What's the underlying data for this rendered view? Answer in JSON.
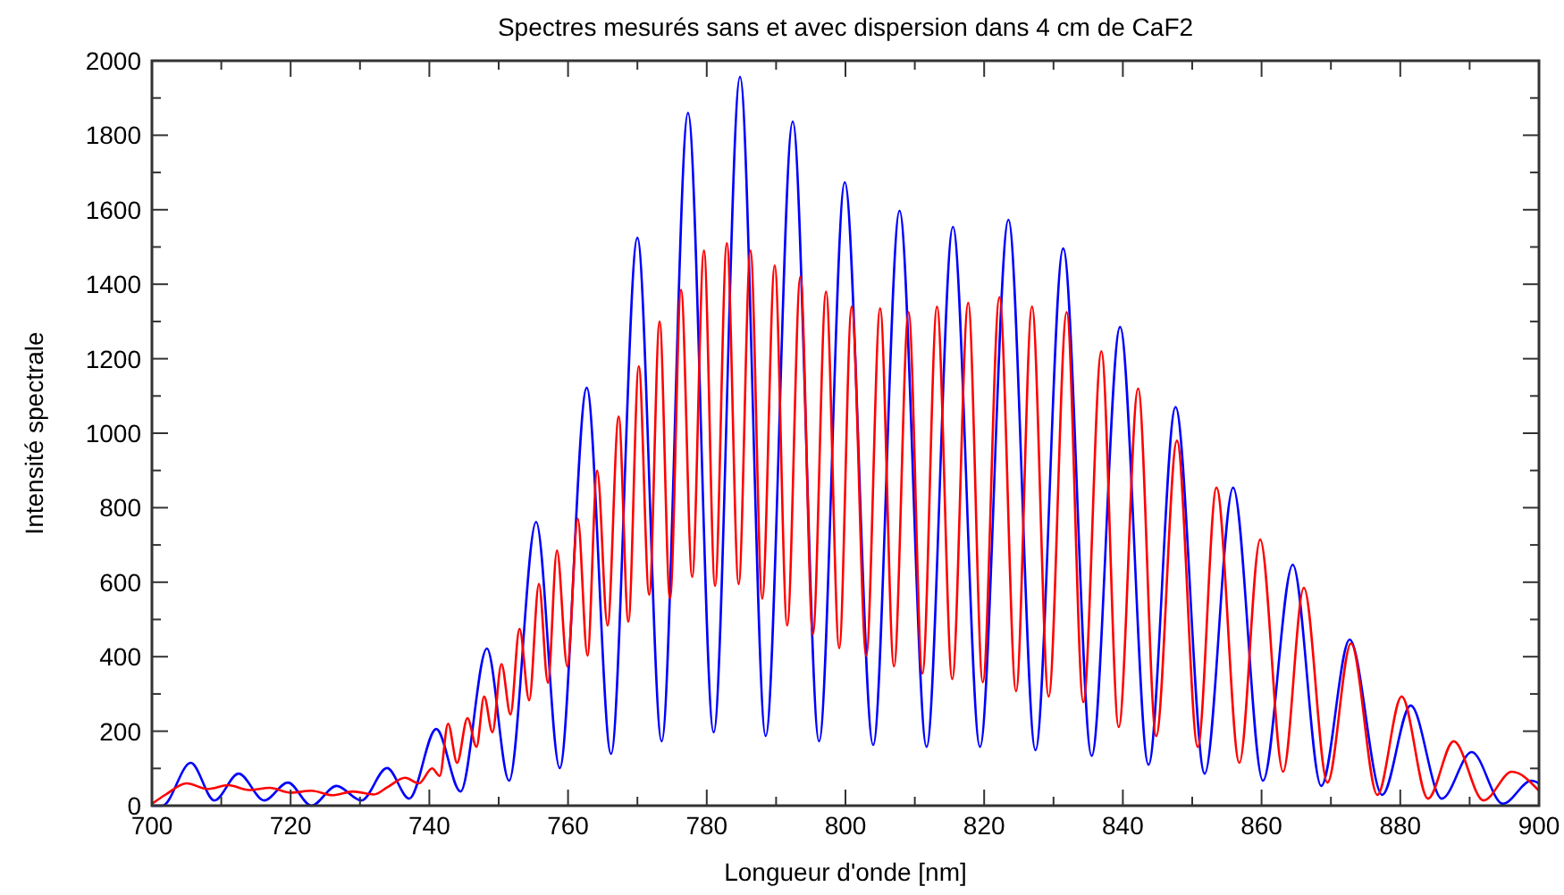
{
  "chart_data": {
    "type": "line",
    "title": "Spectres mesurés sans et avec dispersion dans 4 cm de CaF2",
    "xlabel": "Longueur d'onde [nm]",
    "ylabel": "Intensité spectrale",
    "xlim": [
      700,
      900
    ],
    "ylim": [
      0,
      2000
    ],
    "xticks": [
      700,
      {
        "value": 710,
        "label": null
      },
      720,
      {
        "value": 730,
        "label": null
      },
      740,
      {
        "value": 750,
        "label": null
      },
      760,
      {
        "value": 770,
        "label": null
      },
      780,
      {
        "value": 790,
        "label": null
      },
      800,
      {
        "value": 810,
        "label": null
      },
      820,
      {
        "value": 830,
        "label": null
      },
      840,
      {
        "value": 850,
        "label": null
      },
      860,
      {
        "value": 870,
        "label": null
      },
      880,
      {
        "value": 890,
        "label": null
      },
      900
    ],
    "yticks": [
      0,
      {
        "value": 100,
        "label": null
      },
      200,
      {
        "value": 300,
        "label": null
      },
      400,
      {
        "value": 500,
        "label": null
      },
      600,
      {
        "value": 700,
        "label": null
      },
      800,
      {
        "value": 900,
        "label": null
      },
      1000,
      {
        "value": 1100,
        "label": null
      },
      1200,
      {
        "value": 1300,
        "label": null
      },
      1400,
      {
        "value": 1500,
        "label": null
      },
      1600,
      {
        "value": 1700,
        "label": null
      },
      1800,
      {
        "value": 1900,
        "label": null
      },
      2000
    ],
    "grid": false,
    "line_style": "solid",
    "series": [
      {
        "color": "#0000ff",
        "x": [
          700,
          701.5,
          705.6,
          709,
          712.5,
          716.2,
          719.6,
          723,
          726.6,
          730.2,
          733.9,
          737.1,
          741,
          744.5,
          748.3,
          751.5,
          755.4,
          758.8,
          762.7,
          766.2,
          770,
          773.5,
          777.3,
          781,
          784.8,
          788.5,
          792.4,
          796.2,
          799.9,
          804,
          807.8,
          811.7,
          815.5,
          819.4,
          823.5,
          827.4,
          831.4,
          835.5,
          839.6,
          843.7,
          847.6,
          851.8,
          855.9,
          860.2,
          864.5,
          868.6,
          872.7,
          877.4,
          881.5,
          886,
          890.3,
          894.8,
          898.9,
          900
        ],
        "values": [
          0,
          0,
          115,
          14,
          86,
          14,
          62,
          0,
          53,
          14,
          101,
          19,
          206,
          38,
          422,
          67,
          762,
          101,
          1122,
          139,
          1525,
          173,
          1860,
          197,
          1957,
          187,
          1837,
          173,
          1674,
          163,
          1597,
          158,
          1554,
          158,
          1573,
          149,
          1496,
          134,
          1285,
          110,
          1070,
          86,
          854,
          67,
          647,
          53,
          446,
          29,
          269,
          19,
          144,
          5,
          67,
          60
        ]
      },
      {
        "color": "#ff0000",
        "x": [
          700,
          702,
          705,
          708,
          711,
          714,
          717,
          720,
          723,
          726,
          729,
          732,
          734,
          736.5,
          738.5,
          740.4,
          741.5,
          742.7,
          744,
          745.5,
          746.8,
          747.9,
          749.1,
          750.4,
          751.7,
          753,
          754.4,
          755.8,
          757.1,
          758.4,
          759.9,
          761.4,
          762.8,
          764.2,
          765.7,
          767.3,
          768.7,
          770.2,
          771.7,
          773.2,
          774.7,
          776.3,
          777.9,
          779.6,
          781.2,
          782.9,
          784.6,
          786.3,
          788,
          789.8,
          791.6,
          793.5,
          795.3,
          797.2,
          799.1,
          800.9,
          803,
          805,
          807,
          809.1,
          811.1,
          813.2,
          815.4,
          817.7,
          819.8,
          822.2,
          824.6,
          826.9,
          829.3,
          831.9,
          834.3,
          836.9,
          839.4,
          842.2,
          844.8,
          847.8,
          850.8,
          853.5,
          856.8,
          859.8,
          863.1,
          866.1,
          869.5,
          872.9,
          876.7,
          880.2,
          884,
          887.7,
          892,
          896.1,
          900
        ],
        "values": [
          5,
          30,
          60,
          45,
          55,
          42,
          48,
          35,
          40,
          28,
          38,
          30,
          50,
          75,
          60,
          100,
          80,
          220,
          115,
          235,
          158,
          293,
          197,
          380,
          245,
          475,
          283,
          595,
          330,
          685,
          374,
          770,
          403,
          900,
          484,
          1045,
          494,
          1180,
          566,
          1300,
          556,
          1385,
          614,
          1490,
          590,
          1510,
          595,
          1490,
          556,
          1450,
          484,
          1420,
          460,
          1380,
          423,
          1340,
          403,
          1335,
          374,
          1325,
          355,
          1340,
          340,
          1350,
          331,
          1365,
          307,
          1340,
          293,
          1325,
          278,
          1220,
          211,
          1120,
          187,
          980,
          158,
          854,
          115,
          715,
          91,
          585,
          62,
          436,
          29,
          293,
          19,
          173,
          14,
          91,
          40
        ]
      }
    ]
  }
}
